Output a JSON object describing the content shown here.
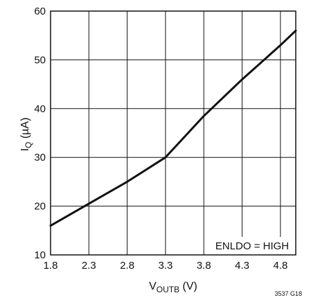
{
  "chart_data": {
    "type": "line",
    "xlabel": {
      "main": "V",
      "sub": "OUTB",
      "unit": " (V)"
    },
    "ylabel": {
      "main": "I",
      "sub": "Q",
      "unit": " (µA)"
    },
    "xlim": [
      1.8,
      5.0
    ],
    "ylim": [
      10,
      60
    ],
    "x_ticks": [
      "1.8",
      "2.3",
      "2.8",
      "3.3",
      "3.8",
      "4.3",
      "4.8"
    ],
    "y_ticks": [
      "10",
      "20",
      "30",
      "40",
      "50",
      "60"
    ],
    "grid": true,
    "annotation": "ENLDO = HIGH",
    "series": [
      {
        "x": [
          1.8,
          2.3,
          2.8,
          3.3,
          3.8,
          4.3,
          4.8,
          5.0
        ],
        "y": [
          16,
          20.5,
          25,
          30,
          38.5,
          46,
          53,
          56
        ]
      }
    ],
    "line_color": "#111111"
  },
  "figure_id": "3537 G18"
}
